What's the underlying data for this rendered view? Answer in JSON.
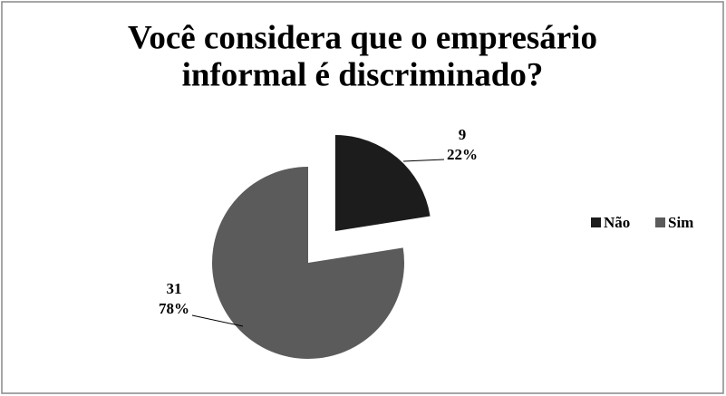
{
  "chart_data": {
    "type": "pie",
    "title": [
      "Você considera que o empresário",
      "informal é discriminado?"
    ],
    "categories": [
      "Não",
      "Sim"
    ],
    "values": [
      9,
      31
    ],
    "percent_labels": [
      "22%",
      "78%"
    ],
    "colors": [
      "#1c1c1c",
      "#5b5b5b"
    ],
    "exploded": [
      true,
      false
    ],
    "legend": "right"
  }
}
